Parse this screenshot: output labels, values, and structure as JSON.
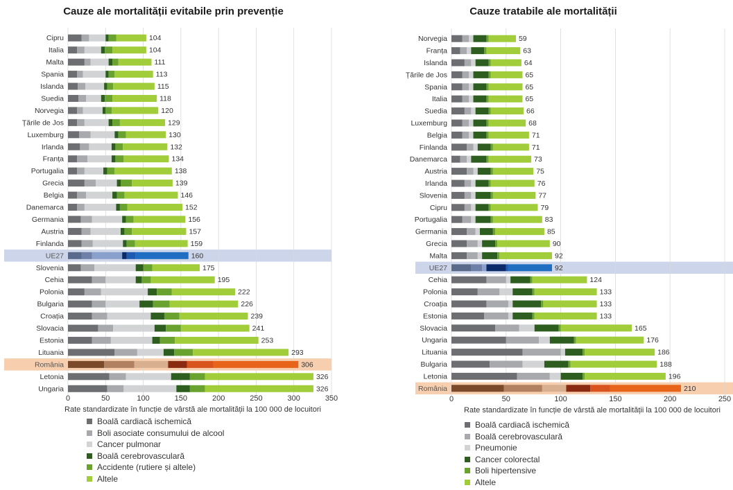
{
  "chart_data": [
    {
      "type": "bar",
      "orientation": "horizontal",
      "stacked": true,
      "title": "Cauze ale mortalității evitabile prin prevenție",
      "xlabel": "Rate standardizate în funcție de vârstă ale mortalității la 100 000 de locuitori",
      "xlim": [
        0,
        350
      ],
      "xticks": [
        "0",
        "50",
        "100",
        "150",
        "200",
        "250",
        "300",
        "350"
      ],
      "grid": true,
      "categories": [
        "Cipru",
        "Italia",
        "Malta",
        "Spania",
        "Islanda",
        "Suedia",
        "Norvegia",
        "Țările de Jos",
        "Luxemburg",
        "Irlanda",
        "Franța",
        "Portugalia",
        "Grecia",
        "Belgia",
        "Danemarca",
        "Germania",
        "Austria",
        "Finlanda",
        "UE27",
        "Slovenia",
        "Cehia",
        "Polonia",
        "Bulgaria",
        "Croația",
        "Slovacia",
        "Estonia",
        "Lituania",
        "România",
        "Letonia",
        "Ungaria"
      ],
      "totals": [
        104,
        104,
        111,
        113,
        115,
        118,
        120,
        129,
        130,
        132,
        134,
        138,
        139,
        146,
        152,
        156,
        157,
        159,
        160,
        175,
        195,
        222,
        226,
        239,
        241,
        253,
        293,
        306,
        326,
        326
      ],
      "value_labels": [
        "104",
        "104",
        "111",
        "113",
        "115",
        "118",
        "120",
        "129",
        "130",
        "132",
        "134",
        "138",
        "139",
        "146",
        "152",
        "156",
        "157",
        "159",
        "160",
        "175",
        "195",
        "222",
        "226",
        "239",
        "241",
        "253",
        "293",
        "306",
        "326",
        "326"
      ],
      "highlight": {
        "UE27": "eu",
        "România": "ro"
      },
      "series": [
        {
          "name": "Boală cardiacă ischemică",
          "color": "#6d6e71",
          "values": [
            18,
            12,
            22,
            12,
            13,
            14,
            12,
            12,
            15,
            16,
            12,
            12,
            22,
            12,
            12,
            17,
            18,
            18,
            18,
            17,
            32,
            22,
            32,
            32,
            40,
            32,
            62,
            48,
            55,
            52
          ]
        },
        {
          "name": "Boli asociate consumului de alcool",
          "color": "#a7a9ac",
          "values": [
            10,
            10,
            8,
            8,
            10,
            10,
            8,
            10,
            15,
            12,
            14,
            10,
            15,
            12,
            10,
            15,
            12,
            15,
            14,
            18,
            18,
            22,
            18,
            20,
            20,
            25,
            30,
            40,
            22,
            22
          ]
        },
        {
          "name": "Cancer pulmonar",
          "color": "#d1d3d4",
          "values": [
            22,
            22,
            24,
            30,
            25,
            20,
            26,
            32,
            32,
            30,
            32,
            25,
            28,
            35,
            42,
            40,
            40,
            40,
            40,
            55,
            40,
            62,
            45,
            58,
            55,
            55,
            35,
            45,
            60,
            70
          ]
        },
        {
          "name": "Boală cerebrovasculară",
          "color": "#2e5e1f",
          "values": [
            4,
            5,
            5,
            4,
            4,
            5,
            4,
            5,
            5,
            5,
            5,
            5,
            5,
            6,
            5,
            5,
            5,
            5,
            6,
            10,
            8,
            12,
            18,
            18,
            15,
            10,
            14,
            25,
            25,
            18
          ]
        },
        {
          "name": "Accidente (rutiere și altele)",
          "color": "#6aa22f",
          "values": [
            10,
            10,
            8,
            8,
            8,
            10,
            8,
            10,
            10,
            10,
            11,
            10,
            15,
            10,
            10,
            10,
            10,
            11,
            12,
            12,
            12,
            20,
            22,
            20,
            20,
            20,
            25,
            35,
            20,
            20
          ]
        },
        {
          "name": "Altele",
          "color": "#a2cd3a",
          "values": [
            40,
            45,
            44,
            51,
            55,
            59,
            62,
            60,
            53,
            59,
            60,
            76,
            54,
            71,
            73,
            69,
            72,
            70,
            70,
            63,
            85,
            84,
            91,
            91,
            91,
            111,
            127,
            113,
            144,
            144
          ]
        }
      ]
    },
    {
      "type": "bar",
      "orientation": "horizontal",
      "stacked": true,
      "title": "Cauze tratabile ale mortalității",
      "xlabel": "Rate standardizate în funcție de vârstă ale mortalității la 100 000 de locuitori",
      "xlim": [
        0,
        250
      ],
      "xticks": [
        "0",
        "50",
        "100",
        "150",
        "200",
        "250"
      ],
      "grid": true,
      "categories": [
        "Norvegia",
        "Franța",
        "Islanda",
        "Țările de Jos",
        "Spania",
        "Italia",
        "Suedia",
        "Luxemburg",
        "Belgia",
        "Finlanda",
        "Danemarca",
        "Austria",
        "Irlanda",
        "Slovenia",
        "Cipru",
        "Portugalia",
        "Germania",
        "Grecia",
        "Malta",
        "UE27",
        "Cehia",
        "Polonia",
        "Croația",
        "Estonia",
        "Slovacia",
        "Ungaria",
        "Lituania",
        "Bulgaria",
        "Letonia",
        "România"
      ],
      "totals": [
        59,
        63,
        64,
        65,
        65,
        65,
        66,
        68,
        71,
        71,
        73,
        75,
        76,
        77,
        79,
        83,
        85,
        90,
        92,
        92,
        124,
        133,
        133,
        133,
        165,
        176,
        186,
        188,
        196,
        210
      ],
      "value_labels": [
        "59",
        "63",
        "64",
        "65",
        "65",
        "65",
        "66",
        "68",
        "71",
        "71",
        "73",
        "75",
        "76",
        "77",
        "79",
        "83",
        "85",
        "90",
        "92",
        "92",
        "124",
        "133",
        "133",
        "133",
        "165",
        "176",
        "186",
        "188",
        "196",
        "210"
      ],
      "highlight": {
        "UE27": "eu",
        "România": "ro"
      },
      "series": [
        {
          "name": "Boală cardiacă ischemică",
          "color": "#6d6e71",
          "values": [
            10,
            8,
            12,
            10,
            10,
            10,
            12,
            10,
            10,
            14,
            8,
            14,
            12,
            12,
            12,
            10,
            14,
            14,
            14,
            18,
            32,
            24,
            32,
            30,
            40,
            50,
            65,
            35,
            60,
            48
          ]
        },
        {
          "name": "Boală cerebrovasculară",
          "color": "#a7a9ac",
          "values": [
            6,
            6,
            6,
            6,
            6,
            6,
            6,
            6,
            6,
            6,
            6,
            6,
            6,
            6,
            6,
            8,
            8,
            10,
            10,
            10,
            18,
            20,
            20,
            22,
            22,
            30,
            35,
            30,
            30,
            35
          ]
        },
        {
          "name": "Pneumonie",
          "color": "#d1d3d4",
          "values": [
            4,
            4,
            4,
            4,
            4,
            4,
            4,
            4,
            4,
            4,
            4,
            4,
            4,
            4,
            4,
            4,
            4,
            4,
            4,
            4,
            4,
            12,
            4,
            4,
            14,
            10,
            4,
            20,
            10,
            22
          ]
        },
        {
          "name": "Cancer colorectal",
          "color": "#2e5e1f",
          "values": [
            12,
            12,
            12,
            14,
            12,
            12,
            12,
            12,
            12,
            12,
            14,
            12,
            12,
            14,
            12,
            14,
            12,
            12,
            14,
            18,
            18,
            18,
            26,
            18,
            22,
            22,
            16,
            22,
            20,
            22
          ]
        },
        {
          "name": "Boli hipertensive",
          "color": "#6aa22f",
          "values": [
            2,
            2,
            2,
            2,
            2,
            2,
            2,
            2,
            2,
            2,
            2,
            2,
            2,
            2,
            2,
            2,
            2,
            2,
            2,
            2,
            2,
            2,
            2,
            2,
            2,
            2,
            2,
            2,
            2,
            18
          ]
        },
        {
          "name": "Altele",
          "color": "#a2cd3a",
          "values": [
            25,
            31,
            28,
            29,
            31,
            31,
            30,
            34,
            37,
            33,
            39,
            37,
            40,
            39,
            43,
            45,
            45,
            48,
            48,
            40,
            50,
            57,
            49,
            57,
            65,
            62,
            64,
            79,
            74,
            65
          ]
        }
      ]
    }
  ]
}
